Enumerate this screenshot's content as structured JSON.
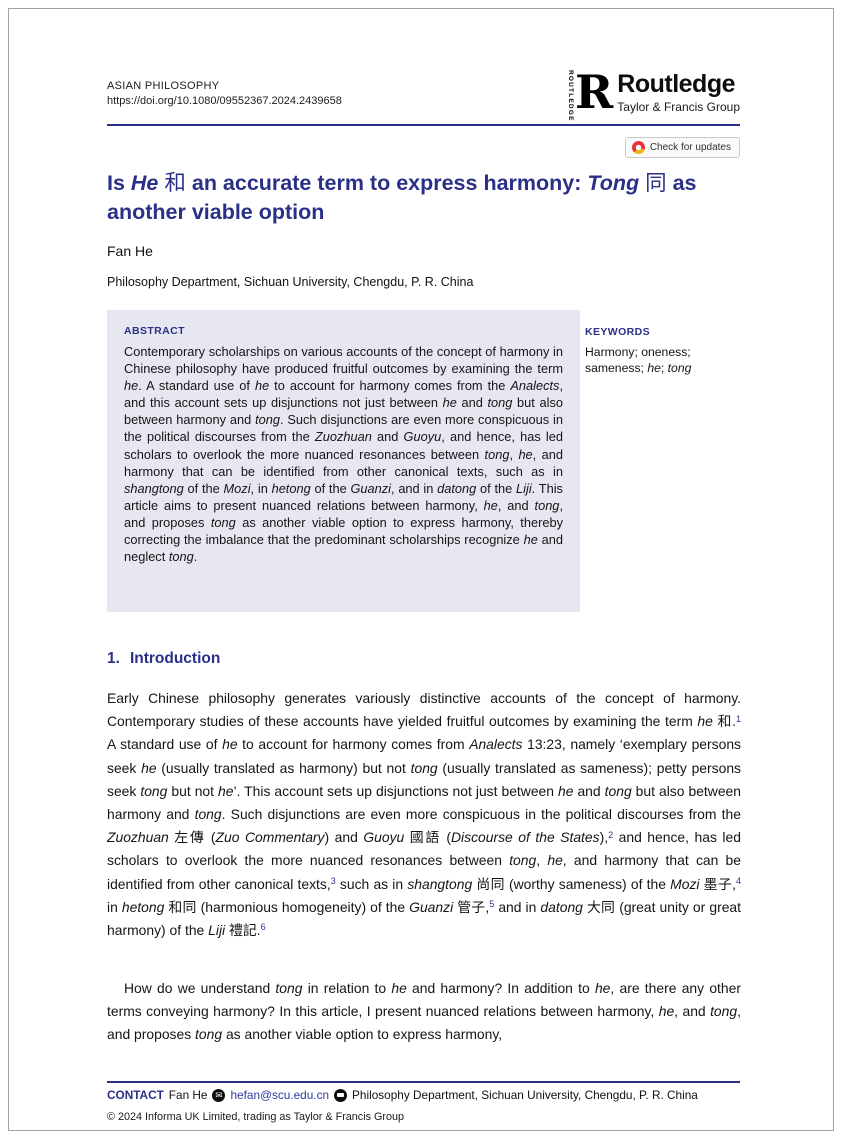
{
  "header": {
    "journal": "ASIAN PHILOSOPHY",
    "doi": "https://doi.org/10.1080/09552367.2024.2439658"
  },
  "publisher": {
    "vertical": "ROUTLEDGE",
    "r_glyph": "R",
    "name": "Routledge",
    "tagline": "Taylor & Francis Group"
  },
  "badge": {
    "label": "Check for updates"
  },
  "article": {
    "title": [
      {
        "t": "Is "
      },
      {
        "t": "He",
        "i": 1
      },
      {
        "t": " "
      },
      {
        "t": "和",
        "c": 1
      },
      {
        "t": " an accurate term to express harmony: "
      },
      {
        "t": "Tong",
        "i": 1
      },
      {
        "t": " "
      },
      {
        "t": "同",
        "c": 1
      },
      {
        "t": " as another viable option"
      }
    ],
    "author": "Fan He",
    "affiliation": "Philosophy Department, Sichuan University, Chengdu, P. R. China"
  },
  "abstract": {
    "label": "ABSTRACT",
    "segments": [
      {
        "t": "Contemporary scholarships on various accounts of the concept of harmony in Chinese philosophy have produced fruitful outcomes by examining the term "
      },
      {
        "t": "he",
        "i": 1
      },
      {
        "t": ". A standard use of "
      },
      {
        "t": "he",
        "i": 1
      },
      {
        "t": " to account for harmony comes from the "
      },
      {
        "t": "Analects",
        "i": 1
      },
      {
        "t": ", and this account sets up disjunctions not just between "
      },
      {
        "t": "he",
        "i": 1
      },
      {
        "t": " and "
      },
      {
        "t": "tong",
        "i": 1
      },
      {
        "t": " but also between harmony and "
      },
      {
        "t": "tong",
        "i": 1
      },
      {
        "t": ". Such disjunctions are even more conspicuous in the political discourses from the "
      },
      {
        "t": "Zuozhuan",
        "i": 1
      },
      {
        "t": " and "
      },
      {
        "t": "Guoyu",
        "i": 1
      },
      {
        "t": ", and hence, has led scholars to overlook the more nuanced resonances between "
      },
      {
        "t": "tong",
        "i": 1
      },
      {
        "t": ", "
      },
      {
        "t": "he",
        "i": 1
      },
      {
        "t": ", and harmony that can be identified from other canonical texts, such as in "
      },
      {
        "t": "shangtong",
        "i": 1
      },
      {
        "t": " of the "
      },
      {
        "t": "Mozi",
        "i": 1
      },
      {
        "t": ", in "
      },
      {
        "t": "hetong",
        "i": 1
      },
      {
        "t": " of the "
      },
      {
        "t": "Guanzi",
        "i": 1
      },
      {
        "t": ", and in "
      },
      {
        "t": "datong",
        "i": 1
      },
      {
        "t": " of the "
      },
      {
        "t": "Liji",
        "i": 1
      },
      {
        "t": ". This article aims to present nuanced relations between harmony, "
      },
      {
        "t": "he",
        "i": 1
      },
      {
        "t": ", and "
      },
      {
        "t": "tong",
        "i": 1
      },
      {
        "t": ", and proposes "
      },
      {
        "t": "tong",
        "i": 1
      },
      {
        "t": " as another viable option to express harmony, thereby correcting the imbalance that the predominant scholarships recognize "
      },
      {
        "t": "he",
        "i": 1
      },
      {
        "t": " and neglect "
      },
      {
        "t": "tong",
        "i": 1
      },
      {
        "t": "."
      }
    ]
  },
  "keywords": {
    "label": "KEYWORDS",
    "segments": [
      {
        "t": "Harmony; oneness; sameness; "
      },
      {
        "t": "he",
        "i": 1
      },
      {
        "t": "; "
      },
      {
        "t": "tong",
        "i": 1
      }
    ]
  },
  "intro": {
    "number": "1.",
    "title": "Introduction",
    "para1": [
      {
        "t": "Early Chinese philosophy generates variously distinctive accounts of the concept of harmony. Contemporary studies of these accounts have yielded fruitful outcomes by examining the term "
      },
      {
        "t": "he",
        "i": 1
      },
      {
        "t": " 和."
      },
      {
        "t": "1",
        "sup": 1
      },
      {
        "t": " A standard use of "
      },
      {
        "t": "he",
        "i": 1
      },
      {
        "t": " to account for harmony comes from "
      },
      {
        "t": "Analects",
        "i": 1
      },
      {
        "t": " 13:23, namely ‘exemplary persons seek "
      },
      {
        "t": "he",
        "i": 1
      },
      {
        "t": " (usually translated as harmony) but not "
      },
      {
        "t": "tong",
        "i": 1
      },
      {
        "t": " (usually translated as sameness); petty persons seek "
      },
      {
        "t": "tong",
        "i": 1
      },
      {
        "t": " but not "
      },
      {
        "t": "he",
        "i": 1
      },
      {
        "t": "’. This account sets up disjunctions not just between "
      },
      {
        "t": "he",
        "i": 1
      },
      {
        "t": " and "
      },
      {
        "t": "tong",
        "i": 1
      },
      {
        "t": " but also between harmony and "
      },
      {
        "t": "tong",
        "i": 1
      },
      {
        "t": ". Such disjunctions are even more conspicuous in the political discourses from the "
      },
      {
        "t": "Zuozhuan",
        "i": 1
      },
      {
        "t": " 左傳 ("
      },
      {
        "t": "Zuo Commentary",
        "i": 1
      },
      {
        "t": ") and "
      },
      {
        "t": "Guoyu",
        "i": 1
      },
      {
        "t": " 國語 ("
      },
      {
        "t": "Discourse of the States",
        "i": 1
      },
      {
        "t": "),"
      },
      {
        "t": "2",
        "sup": 1
      },
      {
        "t": " and hence, has led scholars to overlook the more nuanced resonances between "
      },
      {
        "t": "tong",
        "i": 1
      },
      {
        "t": ", "
      },
      {
        "t": "he",
        "i": 1
      },
      {
        "t": ", and harmony that can be identified from other canonical texts,"
      },
      {
        "t": "3",
        "sup": 1
      },
      {
        "t": " such as in "
      },
      {
        "t": "shangtong",
        "i": 1
      },
      {
        "t": " 尚同 (worthy sameness) of the "
      },
      {
        "t": "Mozi",
        "i": 1
      },
      {
        "t": " 墨子,"
      },
      {
        "t": "4",
        "sup": 1
      },
      {
        "t": " in "
      },
      {
        "t": "hetong",
        "i": 1
      },
      {
        "t": " 和同 (harmonious homogeneity) of the "
      },
      {
        "t": "Guanzi",
        "i": 1
      },
      {
        "t": " 管子,"
      },
      {
        "t": "5",
        "sup": 1
      },
      {
        "t": " and in "
      },
      {
        "t": "datong",
        "i": 1
      },
      {
        "t": " 大同 (great unity or great harmony) of the "
      },
      {
        "t": "Liji",
        "i": 1
      },
      {
        "t": " 禮記."
      },
      {
        "t": "6",
        "sup": 1
      }
    ],
    "para2": [
      {
        "t": "How do we understand "
      },
      {
        "t": "tong",
        "i": 1
      },
      {
        "t": " in relation to "
      },
      {
        "t": "he",
        "i": 1
      },
      {
        "t": " and harmony? In addition to "
      },
      {
        "t": "he",
        "i": 1
      },
      {
        "t": ", are there any other terms conveying harmony? In this article, I present nuanced relations between harmony, "
      },
      {
        "t": "he",
        "i": 1
      },
      {
        "t": ", and "
      },
      {
        "t": "tong",
        "i": 1
      },
      {
        "t": ", and proposes "
      },
      {
        "t": "tong",
        "i": 1
      },
      {
        "t": " as another viable option to express harmony,"
      }
    ]
  },
  "footer": {
    "contact_label": "CONTACT",
    "contact_name": "Fan He",
    "email": "hefan@scu.edu.cn",
    "email_icon": "✉",
    "address": "Philosophy Department, Sichuan University, Chengdu, P. R. China",
    "copyright": "© 2024 Informa UK Limited, trading as Taylor & Francis Group"
  },
  "colors": {
    "navy": "#2b3087",
    "link_blue": "#2f3a9f",
    "abstract_background": "#e7e7f2",
    "crossmark_red": "#e8333a",
    "crossmark_yellow": "#f0b519"
  }
}
